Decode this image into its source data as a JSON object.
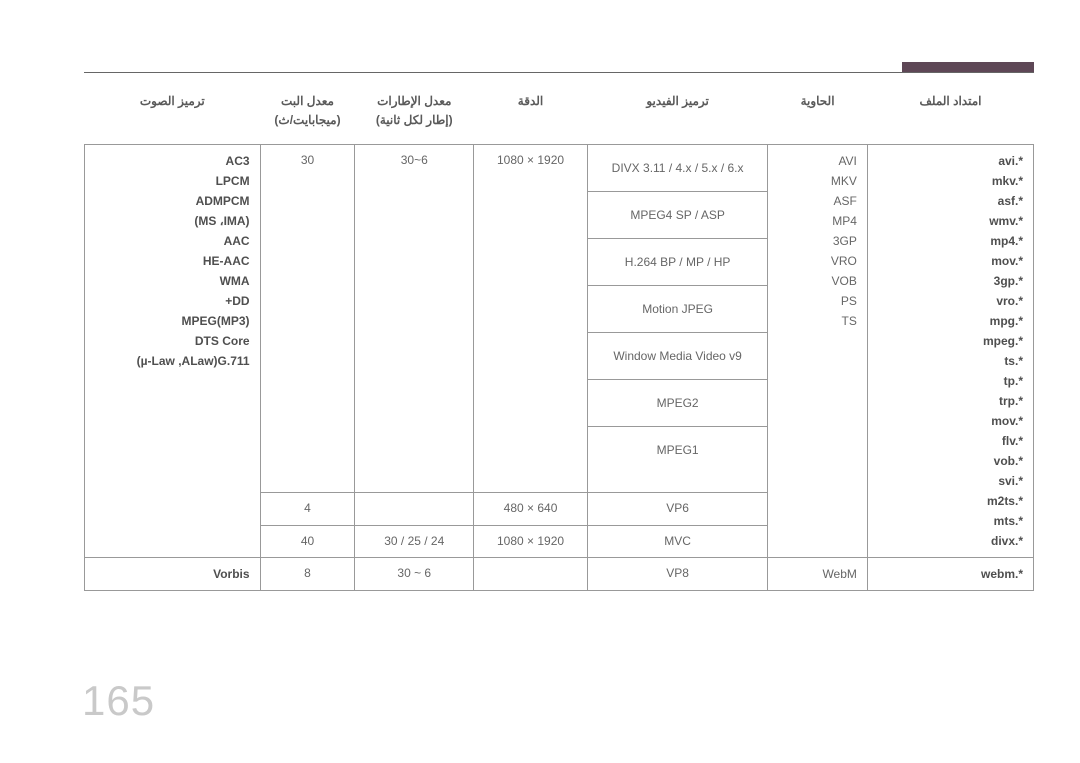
{
  "page_number": "165",
  "accent_color": "#5e4756",
  "headers": {
    "h1": "ترميز الصوت",
    "h2a": "معدل البت",
    "h2b": "(ميجابايت/ث)",
    "h3a": "معدل الإطارات",
    "h3b": "(إطار لكل ثانية)",
    "h4": "الدقة",
    "h5": "ترميز الفيديو",
    "h6": "الحاوية",
    "h7": "امتداد الملف"
  },
  "row1": {
    "audio_codecs": [
      "AC3",
      "LPCM",
      "ADMPCM",
      "(MS ،IMA)",
      "AAC",
      "HE-AAC",
      "WMA",
      "+DD",
      "MPEG(MP3)",
      "DTS Core",
      "(µ-Law ,ALaw)G.711"
    ],
    "bit1": "30",
    "fps1": "30~6",
    "res1": "1080 × 1920",
    "video_codecs": [
      "DIVX 3.11 / 4.x / 5.x / 6.x",
      "MPEG4 SP / ASP",
      "H.264 BP / MP / HP",
      "Motion JPEG",
      "Window Media Video v9",
      "MPEG2",
      "MPEG1"
    ],
    "containers": [
      "AVI",
      "MKV",
      "ASF",
      "MP4",
      "3GP",
      "VRO",
      "VOB",
      "PS",
      "TS"
    ],
    "extensions": [
      "avi.*",
      "mkv.*",
      "asf.*",
      "wmv.*",
      "mp4.*",
      "mov.*",
      "3gp.*",
      "vro.*",
      "mpg.*",
      "mpeg.*",
      "ts.*",
      "tp.*",
      "trp.*",
      "mov.*",
      "flv.*",
      "vob.*",
      "svi.*",
      "m2ts.*",
      "mts.*",
      "divx.*"
    ],
    "bit2": "4",
    "res2": "480 × 640",
    "vcodec2": "VP6",
    "bit3": "40",
    "fps3": "30 / 25 / 24",
    "res3": "1080 × 1920",
    "vcodec3": "MVC"
  },
  "row2": {
    "audio": "Vorbis",
    "bit": "8",
    "fps": "30 ~ 6",
    "res": "",
    "vcodec": "VP8",
    "container": "WebM",
    "ext": "webm.*"
  }
}
